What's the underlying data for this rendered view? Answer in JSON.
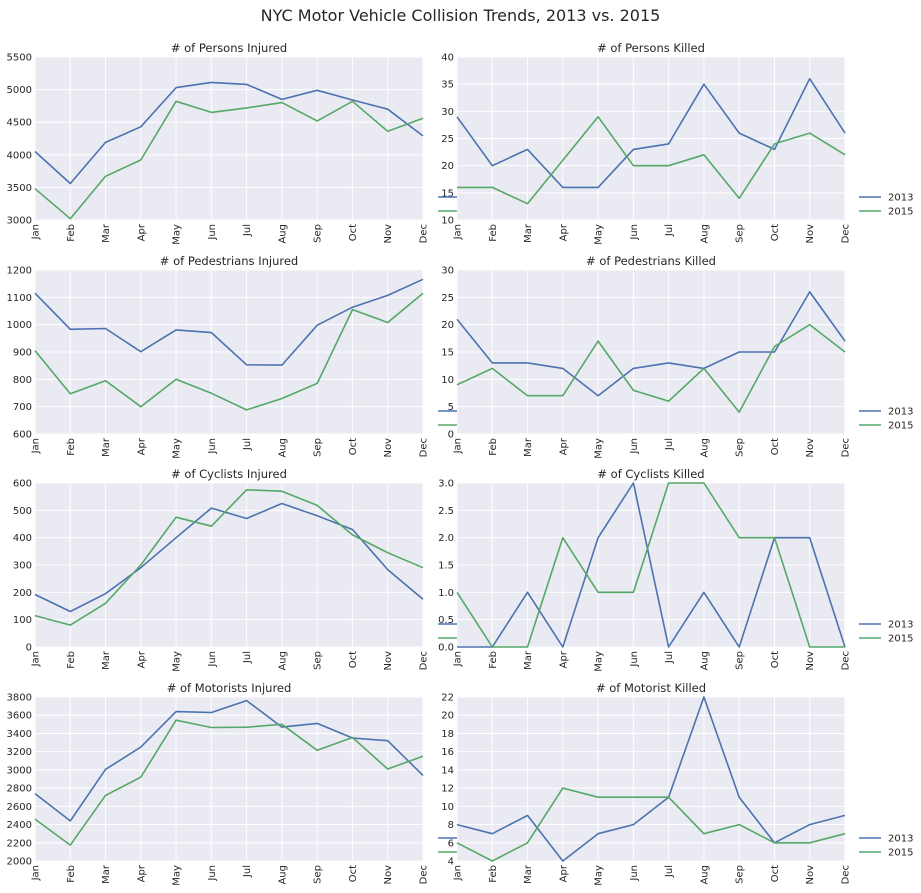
{
  "suptitle": "NYC Motor Vehicle Collision Trends, 2013 vs. 2015",
  "colors": {
    "2013": "#4c72b0",
    "2015": "#55a868",
    "panel_bg": "#eaeaf2",
    "grid": "#ffffff"
  },
  "chart_data": [
    {
      "type": "line",
      "title": "# of Persons Injured",
      "categories": [
        "Jan",
        "Feb",
        "Mar",
        "Apr",
        "May",
        "Jun",
        "Jul",
        "Aug",
        "Sep",
        "Oct",
        "Nov",
        "Dec"
      ],
      "ylim": [
        3000,
        5500
      ],
      "yticks": [
        3000,
        3500,
        4000,
        4500,
        5000,
        5500
      ],
      "ytick_labels": [
        "3000",
        "3500",
        "4000",
        "4500",
        "5000",
        "5500"
      ],
      "series": [
        {
          "name": "2013",
          "values": [
            4050,
            3560,
            4190,
            4430,
            5030,
            5110,
            5080,
            4850,
            4990,
            4840,
            4700,
            4290
          ]
        },
        {
          "name": "2015",
          "values": [
            3480,
            3020,
            3670,
            3920,
            4820,
            4650,
            4720,
            4800,
            4520,
            4820,
            4360,
            4560
          ]
        }
      ],
      "legend": false
    },
    {
      "type": "line",
      "title": "# of Persons Killed",
      "categories": [
        "Jan",
        "Feb",
        "Mar",
        "Apr",
        "May",
        "Jun",
        "Jul",
        "Aug",
        "Sep",
        "Oct",
        "Nov",
        "Dec"
      ],
      "ylim": [
        10,
        40
      ],
      "yticks": [
        10,
        15,
        20,
        25,
        30,
        35,
        40
      ],
      "ytick_labels": [
        "10",
        "15",
        "20",
        "25",
        "30",
        "35",
        "40"
      ],
      "series": [
        {
          "name": "2013",
          "values": [
            29,
            20,
            23,
            16,
            16,
            23,
            24,
            35,
            26,
            23,
            36,
            26
          ]
        },
        {
          "name": "2015",
          "values": [
            16,
            16,
            13,
            21,
            29,
            20,
            20,
            22,
            14,
            24,
            26,
            22
          ]
        }
      ],
      "legend": true
    },
    {
      "type": "line",
      "title": "# of Pedestrians Injured",
      "categories": [
        "Jan",
        "Feb",
        "Mar",
        "Apr",
        "May",
        "Jun",
        "Jul",
        "Aug",
        "Sep",
        "Oct",
        "Nov",
        "Dec"
      ],
      "ylim": [
        600,
        1200
      ],
      "yticks": [
        600,
        700,
        800,
        900,
        1000,
        1100,
        1200
      ],
      "ytick_labels": [
        "600",
        "700",
        "800",
        "900",
        "1000",
        "1100",
        "1200"
      ],
      "series": [
        {
          "name": "2013",
          "values": [
            1115,
            983,
            986,
            901,
            981,
            971,
            853,
            852,
            998,
            1064,
            1107,
            1166
          ]
        },
        {
          "name": "2015",
          "values": [
            905,
            747,
            795,
            700,
            800,
            749,
            688,
            730,
            785,
            1055,
            1008,
            1115
          ]
        }
      ],
      "legend": false
    },
    {
      "type": "line",
      "title": "# of Pedestrians Killed",
      "categories": [
        "Jan",
        "Feb",
        "Mar",
        "Apr",
        "May",
        "Jun",
        "Jul",
        "Aug",
        "Sep",
        "Oct",
        "Nov",
        "Dec"
      ],
      "ylim": [
        0,
        30
      ],
      "yticks": [
        0,
        5,
        10,
        15,
        20,
        25,
        30
      ],
      "ytick_labels": [
        "0",
        "5",
        "10",
        "15",
        "20",
        "25",
        "30"
      ],
      "series": [
        {
          "name": "2013",
          "values": [
            21,
            13,
            13,
            12,
            7,
            12,
            13,
            12,
            15,
            15,
            26,
            17
          ]
        },
        {
          "name": "2015",
          "values": [
            9,
            12,
            7,
            7,
            17,
            8,
            6,
            12,
            4,
            16,
            20,
            15
          ]
        }
      ],
      "legend": true
    },
    {
      "type": "line",
      "title": "# of Cyclists Injured",
      "categories": [
        "Jan",
        "Feb",
        "Mar",
        "Apr",
        "May",
        "Jun",
        "Jul",
        "Aug",
        "Sep",
        "Oct",
        "Nov",
        "Dec"
      ],
      "ylim": [
        0,
        600
      ],
      "yticks": [
        0,
        100,
        200,
        300,
        400,
        500,
        600
      ],
      "ytick_labels": [
        "0",
        "100",
        "200",
        "300",
        "400",
        "500",
        "600"
      ],
      "series": [
        {
          "name": "2013",
          "values": [
            192,
            130,
            195,
            290,
            400,
            508,
            470,
            525,
            480,
            430,
            283,
            175
          ]
        },
        {
          "name": "2015",
          "values": [
            115,
            80,
            160,
            300,
            475,
            442,
            575,
            570,
            518,
            410,
            345,
            290
          ]
        }
      ],
      "legend": false
    },
    {
      "type": "line",
      "title": "# of Cyclists Killed",
      "categories": [
        "Jan",
        "Feb",
        "Mar",
        "Apr",
        "May",
        "Jun",
        "Jul",
        "Aug",
        "Sep",
        "Oct",
        "Nov",
        "Dec"
      ],
      "ylim": [
        0,
        3
      ],
      "yticks": [
        0,
        0.5,
        1,
        1.5,
        2,
        2.5,
        3
      ],
      "ytick_labels": [
        "0.0",
        "0.5",
        "1.0",
        "1.5",
        "2.0",
        "2.5",
        "3.0"
      ],
      "series": [
        {
          "name": "2013",
          "values": [
            0,
            0,
            1,
            0,
            2,
            3,
            0,
            1,
            0,
            2,
            2,
            0
          ]
        },
        {
          "name": "2015",
          "values": [
            1,
            0,
            0,
            2,
            1,
            1,
            3,
            3,
            2,
            2,
            0,
            0
          ]
        }
      ],
      "legend": true
    },
    {
      "type": "line",
      "title": "# of Motorists Injured",
      "categories": [
        "Jan",
        "Feb",
        "Mar",
        "Apr",
        "May",
        "Jun",
        "Jul",
        "Aug",
        "Sep",
        "Oct",
        "Nov",
        "Dec"
      ],
      "ylim": [
        2000,
        3800
      ],
      "yticks": [
        2000,
        2200,
        2400,
        2600,
        2800,
        3000,
        3200,
        3400,
        3600,
        3800
      ],
      "ytick_labels": [
        "2000",
        "2200",
        "2400",
        "2600",
        "2800",
        "3000",
        "3200",
        "3400",
        "3600",
        "3800"
      ],
      "series": [
        {
          "name": "2013",
          "values": [
            2740,
            2440,
            3005,
            3250,
            3640,
            3630,
            3760,
            3470,
            3510,
            3350,
            3320,
            2940
          ]
        },
        {
          "name": "2015",
          "values": [
            2460,
            2175,
            2720,
            2920,
            3545,
            3465,
            3468,
            3500,
            3215,
            3355,
            3010,
            3150
          ]
        }
      ],
      "legend": false
    },
    {
      "type": "line",
      "title": "# of Motorist Killed",
      "categories": [
        "Jan",
        "Feb",
        "Mar",
        "Apr",
        "May",
        "Jun",
        "Jul",
        "Aug",
        "Sep",
        "Oct",
        "Nov",
        "Dec"
      ],
      "ylim": [
        4,
        22
      ],
      "yticks": [
        4,
        6,
        8,
        10,
        12,
        14,
        16,
        18,
        20,
        22
      ],
      "ytick_labels": [
        "4",
        "6",
        "8",
        "10",
        "12",
        "14",
        "16",
        "18",
        "20",
        "22"
      ],
      "series": [
        {
          "name": "2013",
          "values": [
            8,
            7,
            9,
            4,
            7,
            8,
            11,
            22,
            11,
            6,
            8,
            9
          ]
        },
        {
          "name": "2015",
          "values": [
            6,
            4,
            6,
            12,
            11,
            11,
            11,
            7,
            8,
            6,
            6,
            7
          ]
        }
      ],
      "legend": true
    }
  ]
}
